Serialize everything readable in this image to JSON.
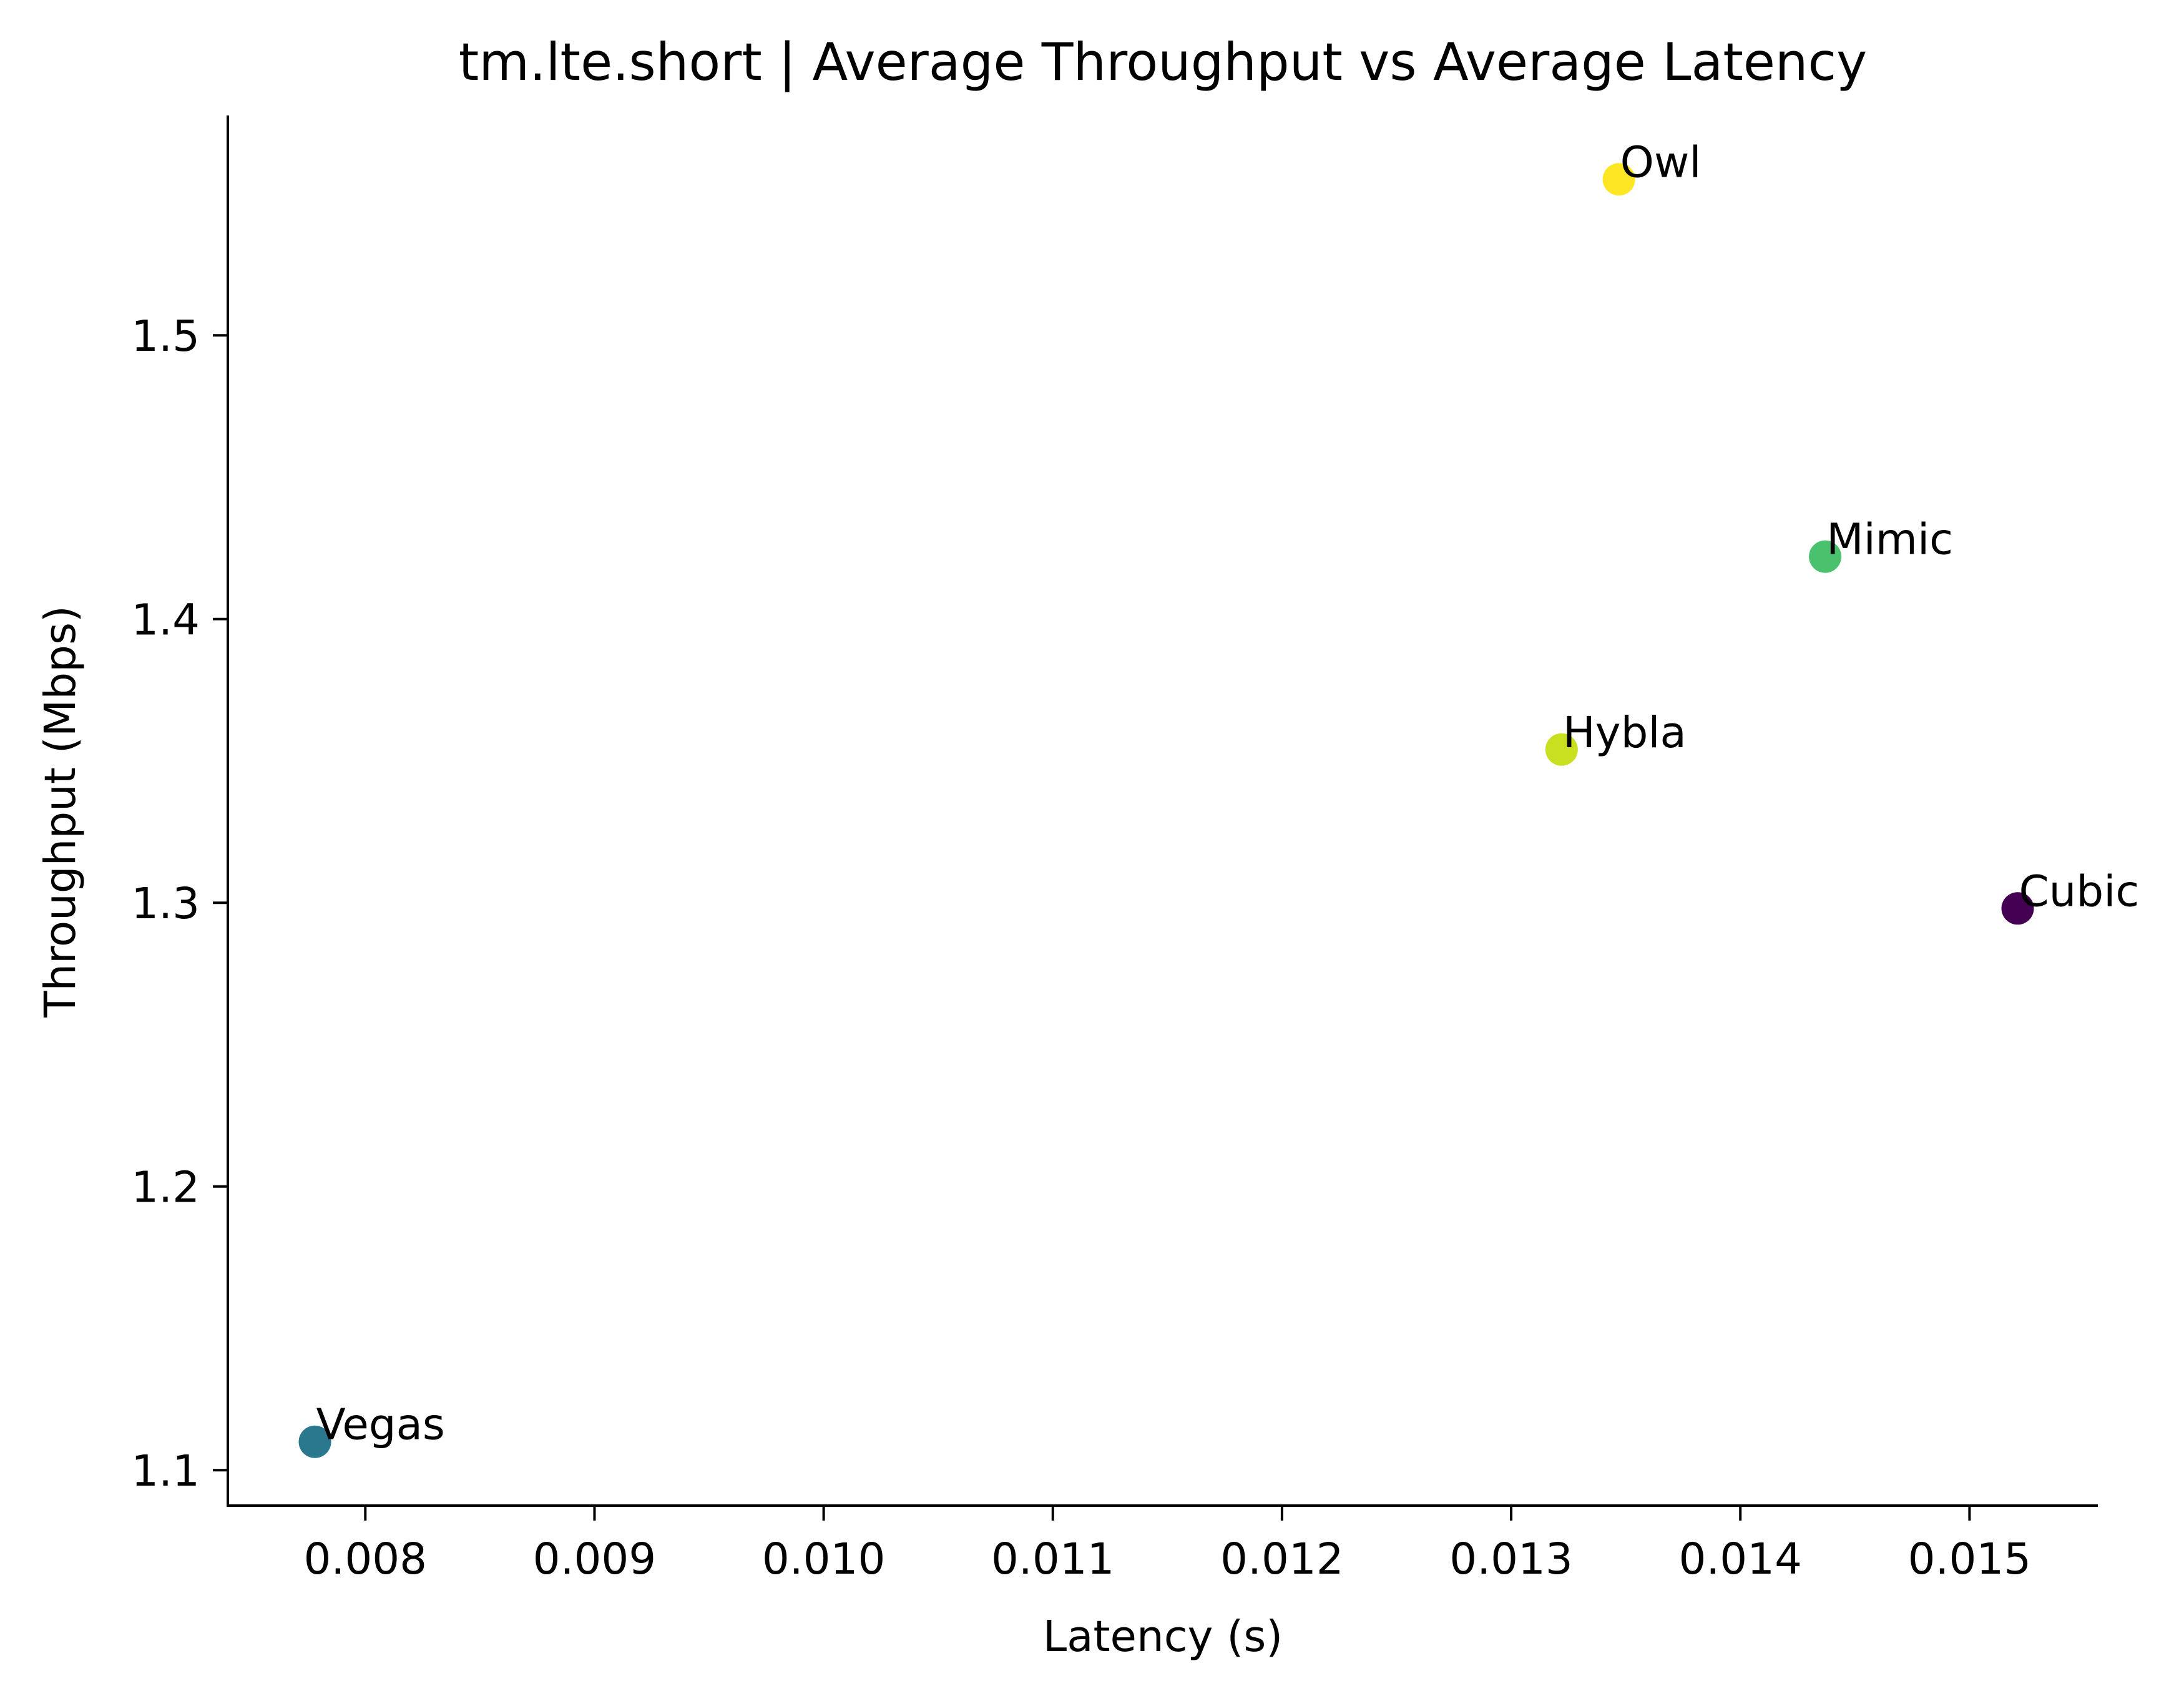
{
  "chart_data": {
    "type": "scatter",
    "title": "tm.lte.short | Average Throughput vs Average Latency",
    "xlabel": "Latency (s)",
    "ylabel": "Throughput (Mbps)",
    "xlim": [
      0.0074,
      0.01556
    ],
    "ylim": [
      1.0875,
      1.5775
    ],
    "xticks": [
      0.008,
      0.009,
      0.01,
      0.011,
      0.012,
      0.013,
      0.014,
      0.015
    ],
    "xtick_labels": [
      "0.008",
      "0.009",
      "0.010",
      "0.011",
      "0.012",
      "0.013",
      "0.014",
      "0.015"
    ],
    "yticks": [
      1.1,
      1.2,
      1.3,
      1.4,
      1.5
    ],
    "ytick_labels": [
      "1.1",
      "1.2",
      "1.3",
      "1.4",
      "1.5"
    ],
    "grid": false,
    "points": [
      {
        "label": "Cubic",
        "x": 0.01521,
        "y": 1.298,
        "color": "#440154"
      },
      {
        "label": "Vegas",
        "x": 0.00778,
        "y": 1.11,
        "color": "#2a788e"
      },
      {
        "label": "Mimic",
        "x": 0.01437,
        "y": 1.422,
        "color": "#4ac16d"
      },
      {
        "label": "Hybla",
        "x": 0.01322,
        "y": 1.354,
        "color": "#c8e020"
      },
      {
        "label": "Owl",
        "x": 0.01347,
        "y": 1.555,
        "color": "#fde725"
      }
    ]
  }
}
